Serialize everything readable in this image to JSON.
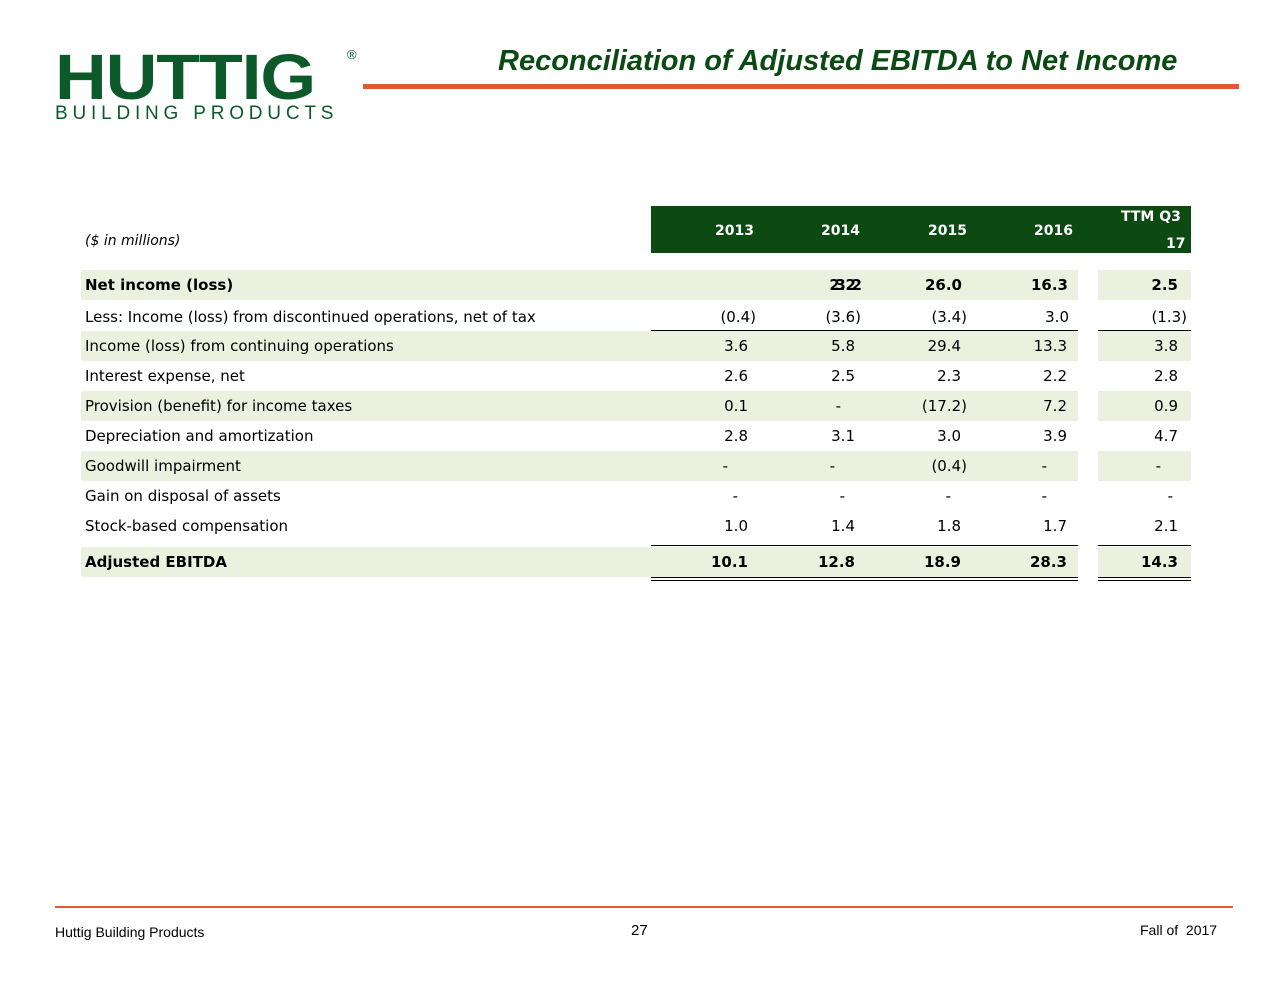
{
  "logo": {
    "main": "HUTTIG",
    "registered": "®",
    "sub": "BUILDING PRODUCTS"
  },
  "title": "Reconciliation of Adjusted EBITDA to Net Income",
  "colors": {
    "brand_green": "#0c5a2a",
    "header_green": "#0c4a12",
    "accent_orange": "#e25a34",
    "row_shade": "#ebf0df"
  },
  "table": {
    "units": "($ in millions)",
    "headers": [
      "2013",
      "2014",
      "2015",
      "2016",
      "TTM Q3",
      "17"
    ],
    "rows": [
      {
        "label": "Net income (loss)",
        "values": [
          "3.2",
          "2.2",
          "26.0",
          "16.3",
          "2.5"
        ]
      },
      {
        "label": "Less: Income (loss) from discontinued operations, net of tax",
        "values": [
          "(0.4)",
          "(3.6)",
          "(3.4)",
          "3.0",
          "(1.3)"
        ]
      },
      {
        "label": "Income (loss) from continuing operations",
        "values": [
          "3.6",
          "5.8",
          "29.4",
          "13.3",
          "3.8"
        ]
      },
      {
        "label": "Interest expense, net",
        "values": [
          "2.6",
          "2.5",
          "2.3",
          "2.2",
          "2.8"
        ]
      },
      {
        "label": "Provision (benefit) for income taxes",
        "values": [
          "0.1",
          "-",
          "(17.2)",
          "7.2",
          "0.9"
        ]
      },
      {
        "label": "Depreciation and amortization",
        "values": [
          "2.8",
          "3.1",
          "3.0",
          "3.9",
          "4.7"
        ]
      },
      {
        "label": "Goodwill impairment",
        "values": [
          "-",
          "-",
          "(0.4)",
          "-",
          "-"
        ]
      },
      {
        "label": "Gain on disposal of assets",
        "values": [
          "-",
          "-",
          "-",
          "-",
          "-"
        ]
      },
      {
        "label": "Stock-based compensation",
        "values": [
          "1.0",
          "1.4",
          "1.8",
          "1.7",
          "2.1"
        ]
      },
      {
        "label": "Adjusted EBITDA",
        "values": [
          "10.1",
          "12.8",
          "18.9",
          "28.3",
          "14.3"
        ]
      }
    ]
  },
  "footer": {
    "company": "Huttig Building Products",
    "page": "27",
    "date": "Fall of  2017"
  }
}
